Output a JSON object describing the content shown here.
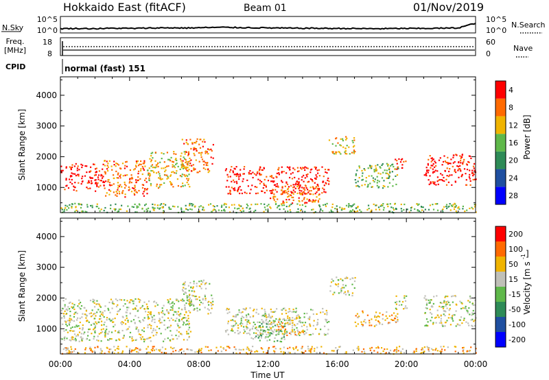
{
  "header": {
    "title": "Hokkaido East (fitACF)",
    "beam": "Beam 01",
    "date": "01/Nov/2019"
  },
  "noise_panel": {
    "left_label": "N.Sky",
    "right_label": "N.Search",
    "left_ticks": [
      "10^5",
      "10^0"
    ],
    "right_ticks": [
      "10^5",
      "10^0"
    ],
    "nsky_values": [
      1.0,
      1.1,
      1.0,
      1.2,
      1.1,
      1.3,
      1.4,
      1.3,
      1.5,
      1.6,
      1.5,
      1.4,
      1.3,
      1.2,
      1.2,
      1.1,
      1.1,
      1.0,
      1.0,
      1.1,
      1.1,
      1.2,
      1.3,
      3.5
    ]
  },
  "freq_panel": {
    "left_label_line1": "Freq.",
    "left_label_line2": "[MHz]",
    "right_label": "Nave",
    "left_ticks": [
      "18",
      "8"
    ],
    "right_ticks": [
      "60",
      "0"
    ]
  },
  "cpid": {
    "label": "CPID",
    "value": "normal (fast) 151"
  },
  "chart_data": [
    {
      "type": "heatmap",
      "name": "power",
      "ylabel": "Slant Range [km]",
      "ylim": [
        180,
        4600
      ],
      "yticks": [
        1000,
        2000,
        3000,
        4000
      ],
      "x_range_hours": [
        0,
        24
      ],
      "colorbar_label": "Power [dB]",
      "colorbar_ticks": [
        "4",
        "8",
        "12",
        "16",
        "20",
        "24",
        "28"
      ],
      "colors": [
        "#0000ff",
        "#1f4fa0",
        "#2e8b57",
        "#5fb84a",
        "#f0b400",
        "#ff6a00",
        "#ff0000"
      ],
      "regions": [
        {
          "t0": 0.0,
          "t1": 2.5,
          "r0": 900,
          "r1": 1800,
          "level": 6
        },
        {
          "t0": 2.5,
          "t1": 5.0,
          "r0": 700,
          "r1": 1900,
          "level": 5
        },
        {
          "t0": 5.0,
          "t1": 7.5,
          "r0": 1000,
          "r1": 2200,
          "level": 4
        },
        {
          "t0": 7.0,
          "t1": 8.8,
          "r0": 1500,
          "r1": 2600,
          "level": 5
        },
        {
          "t0": 9.5,
          "t1": 15.5,
          "r0": 800,
          "r1": 1700,
          "level": 6
        },
        {
          "t0": 12.0,
          "t1": 15.0,
          "r0": 500,
          "r1": 1100,
          "level": 5
        },
        {
          "t0": 15.5,
          "t1": 17.0,
          "r0": 2100,
          "r1": 2700,
          "level": 4
        },
        {
          "t0": 17.0,
          "t1": 19.5,
          "r0": 1000,
          "r1": 1800,
          "level": 3
        },
        {
          "t0": 19.3,
          "t1": 20.0,
          "r0": 1600,
          "r1": 2000,
          "level": 6
        },
        {
          "t0": 21.0,
          "t1": 24.0,
          "r0": 1100,
          "r1": 2100,
          "level": 6
        },
        {
          "t0": 0.0,
          "t1": 24.0,
          "r0": 200,
          "r1": 500,
          "level": 3
        }
      ]
    },
    {
      "type": "heatmap",
      "name": "velocity",
      "ylabel": "Slant Range [km]",
      "ylim": [
        180,
        4600
      ],
      "yticks": [
        1000,
        2000,
        3000,
        4000
      ],
      "x_range_hours": [
        0,
        24
      ],
      "xticks": [
        "00:00",
        "04:00",
        "08:00",
        "12:00",
        "16:00",
        "20:00",
        "00:00"
      ],
      "xlabel": "Time UT",
      "colorbar_label": "Velocity [m s",
      "colorbar_ticks": [
        "200",
        "100",
        "50",
        "15",
        "-15",
        "-50",
        "-100",
        "-200"
      ],
      "colors": [
        "#0000ff",
        "#1f4fa0",
        "#2e8b57",
        "#5fb84a",
        "#c0c0b8",
        "#f0b400",
        "#ff6a00",
        "#ff0000"
      ],
      "regions": [
        {
          "t0": 0.0,
          "t1": 7.5,
          "r0": 600,
          "r1": 2000,
          "level": 4
        },
        {
          "t0": 7.0,
          "t1": 8.8,
          "r0": 1500,
          "r1": 2600,
          "level": 4
        },
        {
          "t0": 9.5,
          "t1": 15.5,
          "r0": 800,
          "r1": 1700,
          "level": 4
        },
        {
          "t0": 11.0,
          "t1": 13.0,
          "r0": 600,
          "r1": 1300,
          "level": 3
        },
        {
          "t0": 12.5,
          "t1": 14.0,
          "r0": 800,
          "r1": 1400,
          "level": 5
        },
        {
          "t0": 15.5,
          "t1": 17.0,
          "r0": 2100,
          "r1": 2700,
          "level": 4
        },
        {
          "t0": 17.0,
          "t1": 19.5,
          "r0": 1100,
          "r1": 1600,
          "level": 5
        },
        {
          "t0": 19.3,
          "t1": 20.0,
          "r0": 1600,
          "r1": 2100,
          "level": 4
        },
        {
          "t0": 21.0,
          "t1": 24.0,
          "r0": 1100,
          "r1": 2100,
          "level": 4
        },
        {
          "t0": 0.0,
          "t1": 24.0,
          "r0": 200,
          "r1": 450,
          "level": 5
        }
      ]
    }
  ]
}
